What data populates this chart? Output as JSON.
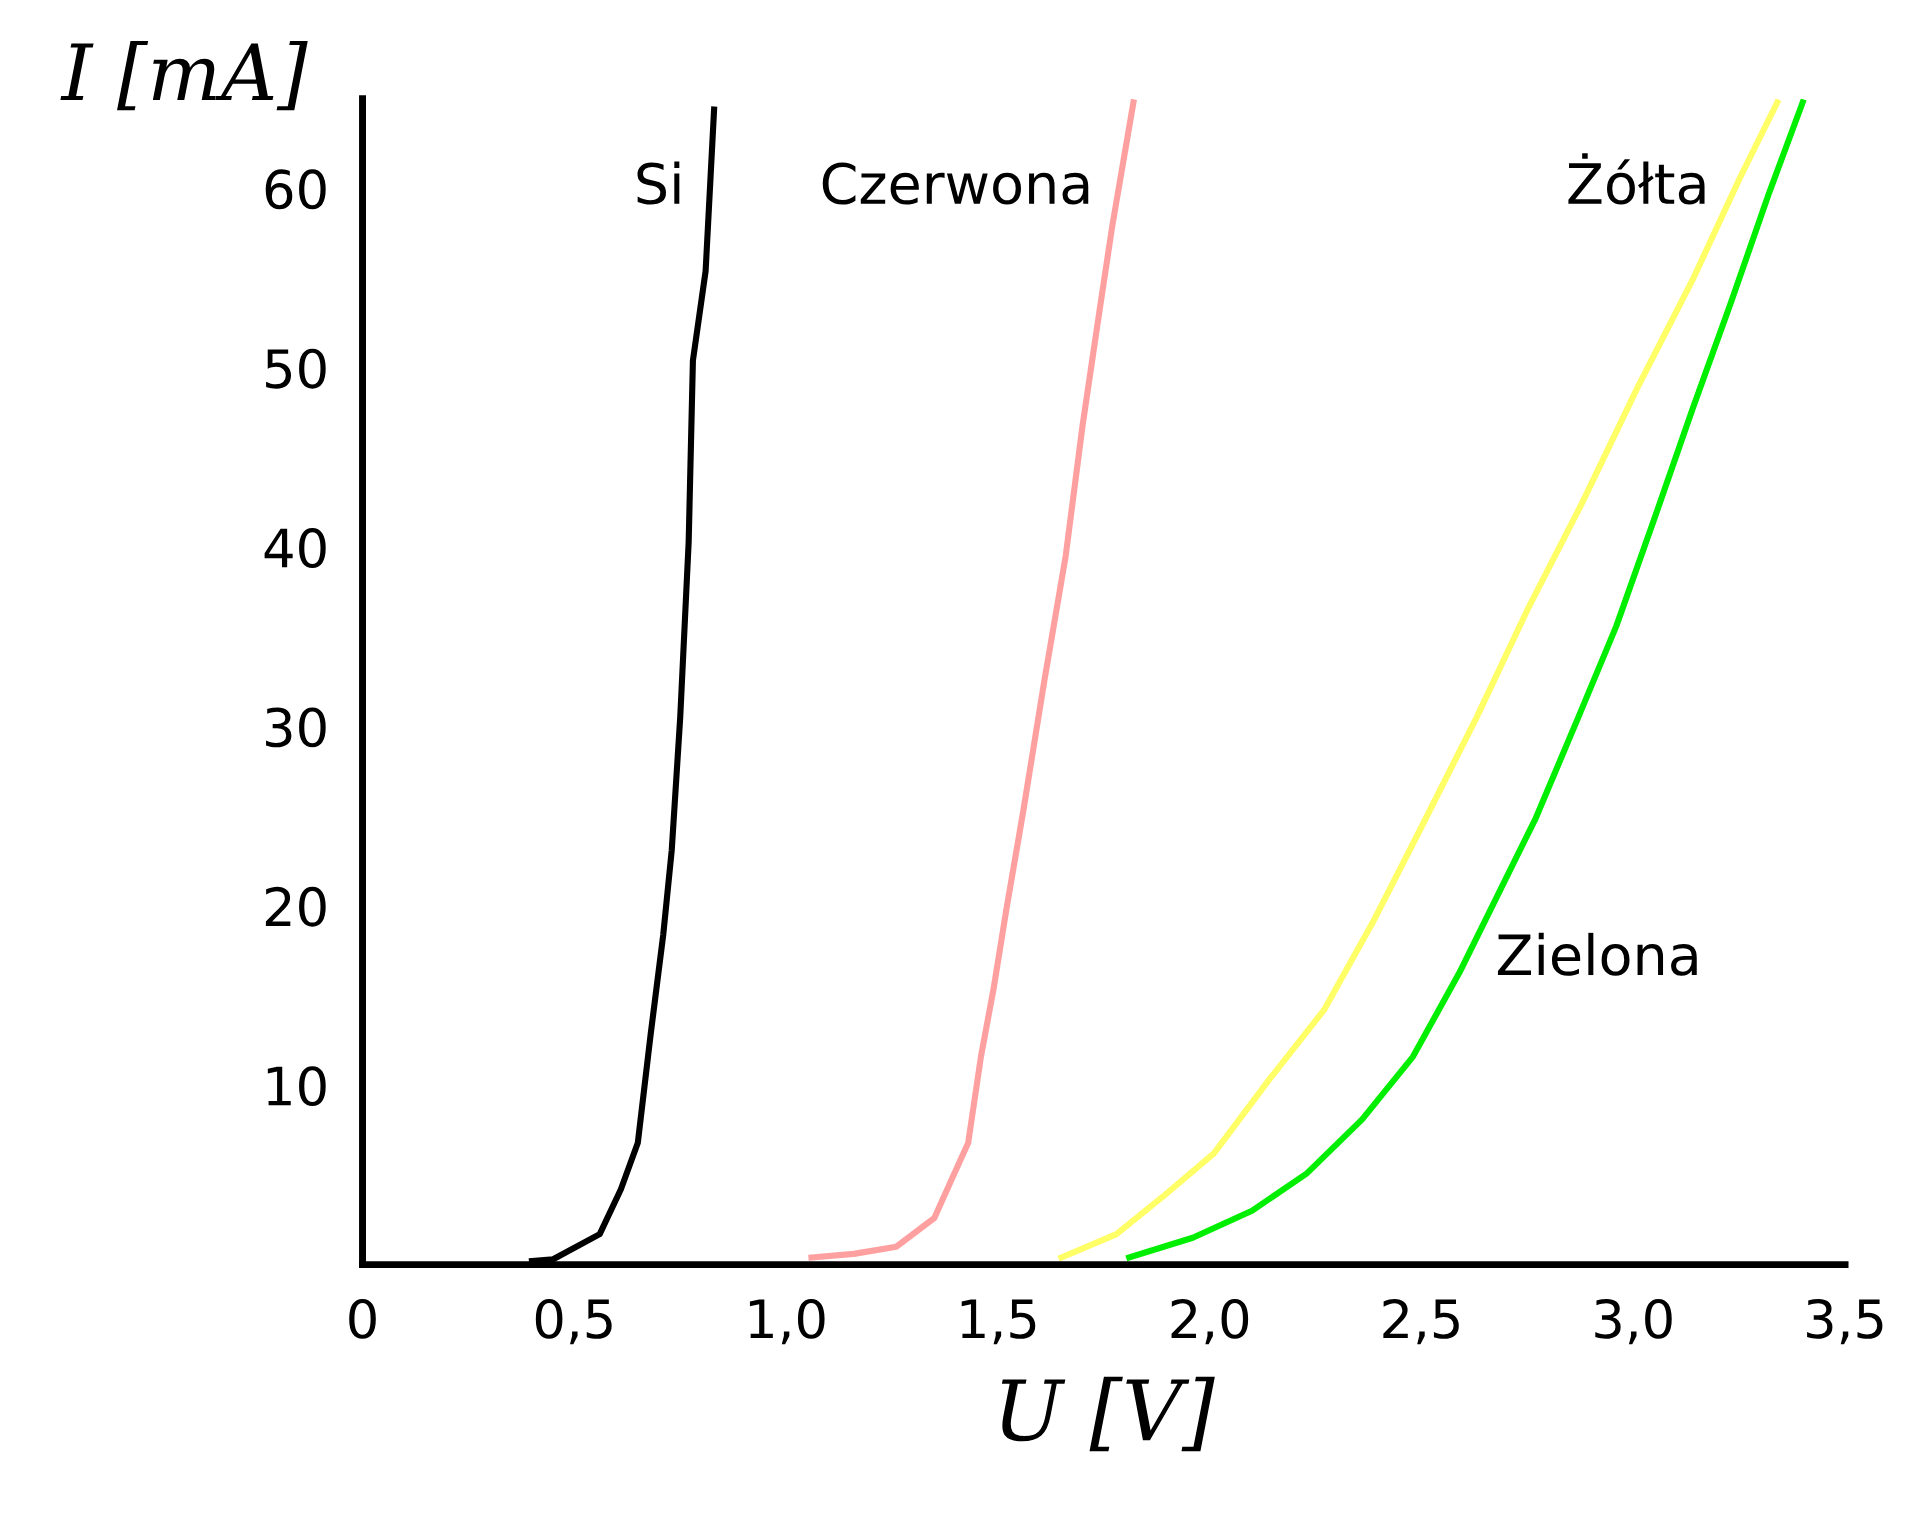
{
  "chart_data": {
    "type": "line",
    "xlabel": "U [V]",
    "ylabel": "I [mA]",
    "xlim": [
      0,
      3.5
    ],
    "ylim": [
      0,
      65
    ],
    "xticks": [
      0,
      {
        "value": 0.5,
        "label": "0,5"
      },
      {
        "value": 1.0,
        "label": "1,0"
      },
      {
        "value": 1.5,
        "label": "1,5"
      },
      {
        "value": 2.0,
        "label": "2,0"
      },
      {
        "value": 2.5,
        "label": "2,5"
      },
      {
        "value": 3.0,
        "label": "3,0"
      },
      {
        "value": 3.5,
        "label": "3,5"
      }
    ],
    "yticks": [
      10,
      20,
      30,
      40,
      50,
      60
    ],
    "grid": false,
    "legend": false,
    "line_style": "solid",
    "marker": "none",
    "series": [
      {
        "name": "Si",
        "color": "#000000",
        "x": [
          0.4,
          0.45,
          0.56,
          0.61,
          0.65,
          0.68,
          0.71,
          0.73,
          0.75,
          0.77,
          0.78,
          0.81,
          0.83
        ],
        "values": [
          0.2,
          0.3,
          1.7,
          4.2,
          6.8,
          12.8,
          18.4,
          23.1,
          30.5,
          40.3,
          50.4,
          55.4,
          64.4
        ]
      },
      {
        "name": "Czerwona",
        "color": "#ffa0a0",
        "x": [
          1.06,
          1.16,
          1.26,
          1.35,
          1.39,
          1.43,
          1.46,
          1.49,
          1.52,
          1.56,
          1.61,
          1.66,
          1.7,
          1.74,
          1.77,
          1.82
        ],
        "values": [
          0.4,
          0.6,
          1.0,
          2.6,
          4.7,
          6.8,
          11.6,
          15.4,
          19.8,
          25.3,
          32.6,
          39.5,
          46.8,
          53.2,
          57.9,
          64.8
        ]
      },
      {
        "name": "Żółta",
        "color": "#ffff66",
        "x": [
          1.65,
          1.78,
          1.89,
          2.01,
          2.14,
          2.27,
          2.39,
          2.5,
          2.63,
          2.75,
          2.88,
          3.01,
          3.14,
          3.25,
          3.34
        ],
        "values": [
          0.4,
          1.7,
          3.8,
          6.2,
          10.3,
          14.2,
          19.3,
          24.4,
          30.5,
          36.5,
          42.5,
          48.9,
          54.9,
          60.5,
          64.8
        ]
      },
      {
        "name": "Zielona",
        "color": "#00ee00",
        "x": [
          1.81,
          1.96,
          2.1,
          2.23,
          2.36,
          2.48,
          2.59,
          2.68,
          2.77,
          2.87,
          2.96,
          3.05,
          3.14,
          3.23,
          3.32,
          3.4
        ],
        "values": [
          0.4,
          1.5,
          3.0,
          5.1,
          8.1,
          11.6,
          16.3,
          20.6,
          24.9,
          30.5,
          35.6,
          41.6,
          47.7,
          53.6,
          59.7,
          64.8
        ]
      }
    ]
  }
}
